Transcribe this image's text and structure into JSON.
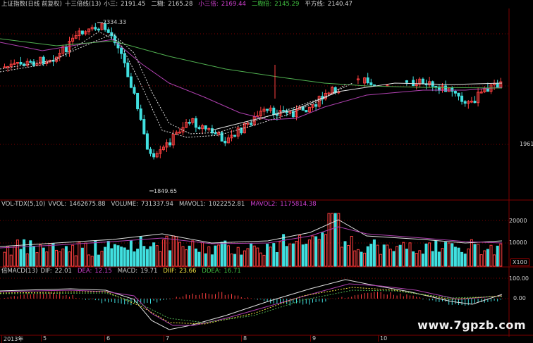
{
  "price_header": {
    "title": "上证指数(日线 前复权)",
    "indicator": "十三倍线(13)",
    "m1_label": "小三:",
    "m1_value": "2191.45",
    "m2_label": "二糊:",
    "m2_value": "2165.28",
    "m3_label": "小三倍:",
    "m3_value": "2169.44",
    "m4_label": "二糊倍:",
    "m4_value": "2145.29",
    "m5_label": "平方线:",
    "m5_value": "2140.47"
  },
  "price_labels": {
    "high": "2334.33",
    "low": "1849.65",
    "axis_right": "1961"
  },
  "vol_header": {
    "name": "VOL-TDX(5,10)",
    "vvol_label": "VVOL:",
    "vvol_value": "1462675.88",
    "volume_label": "VOLUME:",
    "volume_value": "731337.94",
    "mavol1_label": "MAVOL1:",
    "mavol1_value": "1022252.81",
    "mavol2_label": "MAVOL2:",
    "mavol2_value": "1175814.38"
  },
  "vol_axis": {
    "t1": "20000",
    "t2": "10000",
    "unit": "X100"
  },
  "macd_header": {
    "name": "倍MACD(13)",
    "dif_label": "DIF:",
    "dif_value": "22.01",
    "dea_label": "DEA:",
    "dea_value": "12.15",
    "macd_label": "MACD:",
    "macd_value": "19.71",
    "diif_label": "DIIF:",
    "diif_value": "23.66",
    "ddea_label": "DDEA:",
    "ddea_value": "16.71"
  },
  "macd_axis": {
    "t1": "100.00",
    "t2": "0.00"
  },
  "date_axis": [
    "2013年",
    "5",
    "6",
    "7",
    "8",
    "9",
    "10"
  ],
  "watermark": "www.7gpzb.com",
  "colors": {
    "up": "#ff4040",
    "down": "#40e0e0",
    "ma_white": "#e0e0e0",
    "ma_magenta": "#b040b0",
    "ma_green": "#50b050",
    "grid": "#800000"
  }
}
